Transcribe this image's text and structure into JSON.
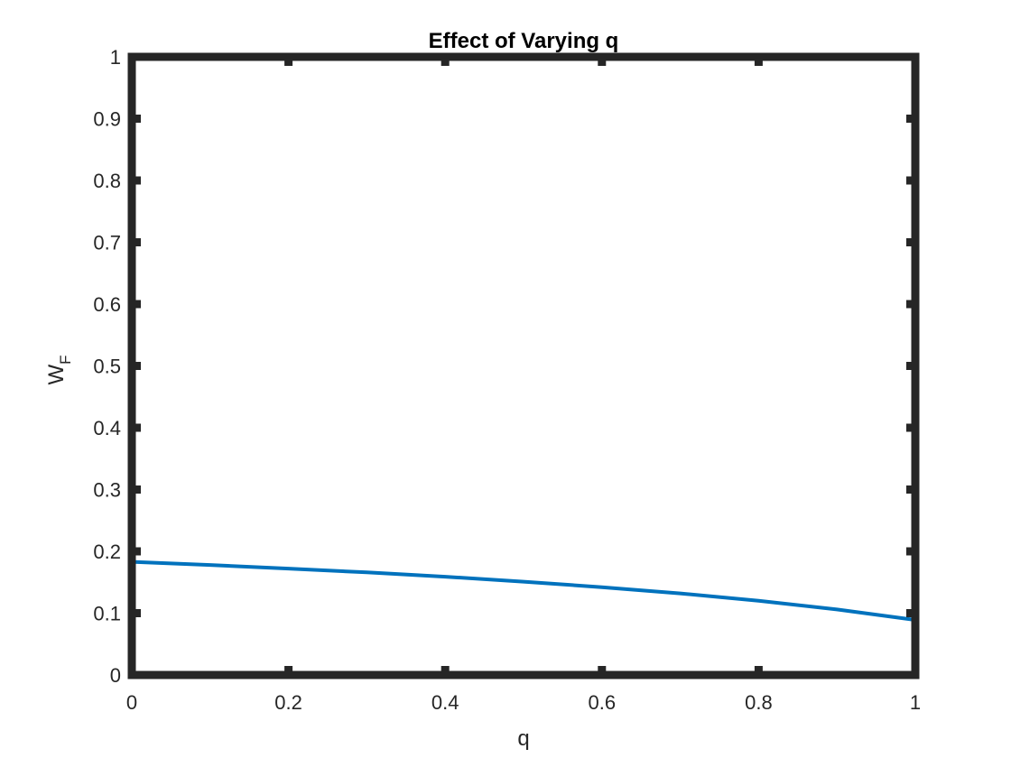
{
  "chart_data": {
    "type": "line",
    "title": "Effect of Varying q",
    "xlabel": "q",
    "ylabel": "W",
    "ylabel_subscript": "F",
    "xlim": [
      0,
      1
    ],
    "ylim": [
      0,
      1
    ],
    "x_ticks": [
      0,
      0.2,
      0.4,
      0.6,
      0.8,
      1
    ],
    "x_tick_labels": [
      "0",
      "0.2",
      "0.4",
      "0.6",
      "0.8",
      "1"
    ],
    "y_ticks": [
      0,
      0.1,
      0.2,
      0.3,
      0.4,
      0.5,
      0.6,
      0.7,
      0.8,
      0.9,
      1
    ],
    "y_tick_labels": [
      "0",
      "0.1",
      "0.2",
      "0.3",
      "0.4",
      "0.5",
      "0.6",
      "0.7",
      "0.8",
      "0.9",
      "1"
    ],
    "grid": false,
    "legend": "none",
    "axis_color": "#262626",
    "series": [
      {
        "color": "#0072BD",
        "x": [
          0,
          0.1,
          0.2,
          0.3,
          0.4,
          0.5,
          0.6,
          0.7,
          0.8,
          0.9,
          1.0
        ],
        "y": [
          0.183,
          0.178,
          0.172,
          0.166,
          0.159,
          0.151,
          0.142,
          0.132,
          0.12,
          0.106,
          0.089
        ]
      }
    ]
  }
}
